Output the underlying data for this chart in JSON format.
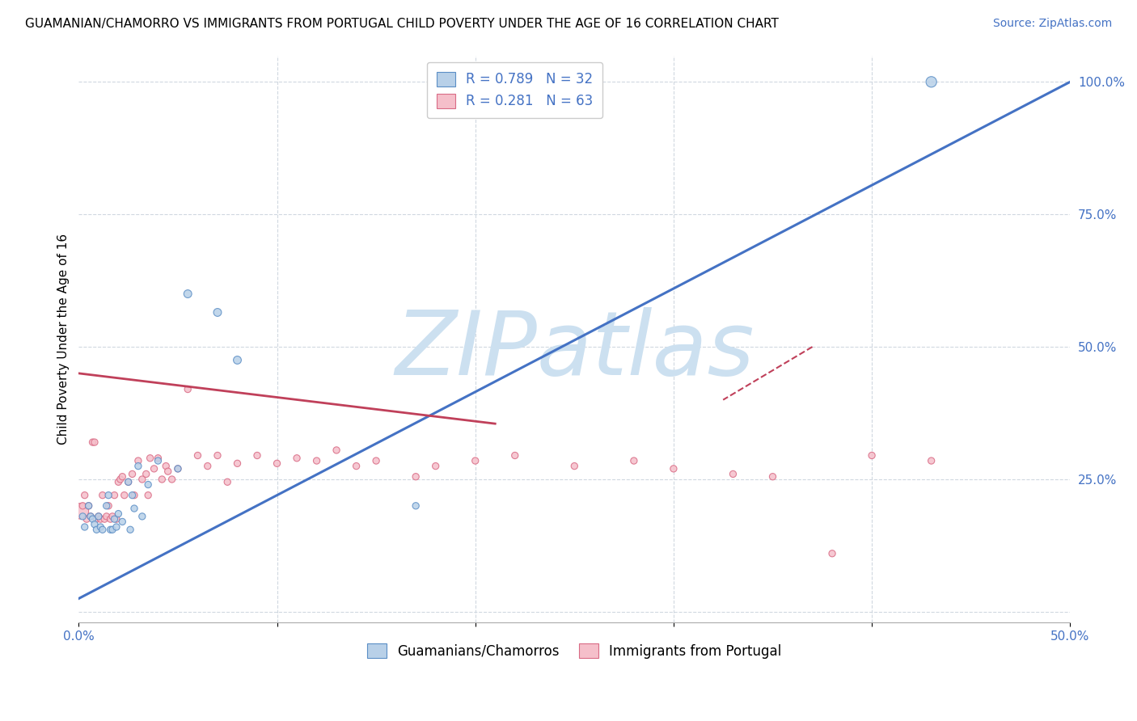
{
  "title": "GUAMANIAN/CHAMORRO VS IMMIGRANTS FROM PORTUGAL CHILD POVERTY UNDER THE AGE OF 16 CORRELATION CHART",
  "source": "Source: ZipAtlas.com",
  "ylabel": "Child Poverty Under the Age of 16",
  "xlim": [
    0.0,
    0.5
  ],
  "ylim_display": [
    0.0,
    1.05
  ],
  "xticks": [
    0.0,
    0.1,
    0.2,
    0.3,
    0.4,
    0.5
  ],
  "xticklabels": [
    "0.0%",
    "",
    "",
    "",
    "",
    "50.0%"
  ],
  "yticks_right": [
    0.0,
    0.25,
    0.5,
    0.75,
    1.0
  ],
  "yticklabels_right": [
    "",
    "25.0%",
    "50.0%",
    "75.0%",
    "100.0%"
  ],
  "blue_fill_color": "#b8d0e8",
  "blue_edge_color": "#5b8ec5",
  "pink_fill_color": "#f5bfca",
  "pink_edge_color": "#d96b85",
  "blue_line_color": "#4472c4",
  "pink_line_color": "#c0405a",
  "watermark": "ZIPatlas",
  "watermark_color": "#cce0f0",
  "legend_R_blue": "R = 0.789",
  "legend_N_blue": "N = 32",
  "legend_R_pink": "R = 0.281",
  "legend_N_pink": "N = 63",
  "legend_label_blue": "Guamanians/Chamorros",
  "legend_label_pink": "Immigrants from Portugal",
  "blue_scatter_x": [
    0.002,
    0.003,
    0.005,
    0.006,
    0.007,
    0.008,
    0.009,
    0.01,
    0.011,
    0.012,
    0.014,
    0.015,
    0.016,
    0.017,
    0.018,
    0.019,
    0.02,
    0.022,
    0.025,
    0.026,
    0.027,
    0.028,
    0.03,
    0.032,
    0.035,
    0.04,
    0.05,
    0.055,
    0.07,
    0.08,
    0.17,
    0.43
  ],
  "blue_scatter_y": [
    0.18,
    0.16,
    0.2,
    0.18,
    0.175,
    0.165,
    0.155,
    0.18,
    0.16,
    0.155,
    0.2,
    0.22,
    0.155,
    0.155,
    0.175,
    0.16,
    0.185,
    0.17,
    0.245,
    0.155,
    0.22,
    0.195,
    0.275,
    0.18,
    0.24,
    0.285,
    0.27,
    0.6,
    0.565,
    0.475,
    0.2,
    1.0
  ],
  "blue_scatter_size": [
    35,
    35,
    35,
    35,
    35,
    35,
    35,
    35,
    35,
    35,
    35,
    35,
    35,
    35,
    35,
    35,
    35,
    35,
    35,
    35,
    35,
    35,
    35,
    35,
    35,
    35,
    35,
    50,
    50,
    50,
    35,
    90
  ],
  "pink_scatter_x": [
    0.001,
    0.002,
    0.003,
    0.004,
    0.005,
    0.006,
    0.007,
    0.008,
    0.009,
    0.01,
    0.011,
    0.012,
    0.013,
    0.014,
    0.015,
    0.016,
    0.017,
    0.018,
    0.019,
    0.02,
    0.021,
    0.022,
    0.023,
    0.025,
    0.027,
    0.028,
    0.03,
    0.032,
    0.034,
    0.035,
    0.036,
    0.038,
    0.04,
    0.042,
    0.044,
    0.045,
    0.047,
    0.05,
    0.055,
    0.06,
    0.065,
    0.07,
    0.075,
    0.08,
    0.09,
    0.1,
    0.11,
    0.12,
    0.13,
    0.14,
    0.15,
    0.17,
    0.18,
    0.2,
    0.22,
    0.25,
    0.28,
    0.3,
    0.33,
    0.35,
    0.38,
    0.4,
    0.43
  ],
  "pink_scatter_y": [
    0.19,
    0.2,
    0.22,
    0.175,
    0.2,
    0.18,
    0.32,
    0.32,
    0.175,
    0.18,
    0.175,
    0.22,
    0.175,
    0.18,
    0.2,
    0.175,
    0.18,
    0.22,
    0.175,
    0.245,
    0.25,
    0.255,
    0.22,
    0.245,
    0.26,
    0.22,
    0.285,
    0.25,
    0.26,
    0.22,
    0.29,
    0.27,
    0.29,
    0.25,
    0.275,
    0.265,
    0.25,
    0.27,
    0.42,
    0.295,
    0.275,
    0.295,
    0.245,
    0.28,
    0.295,
    0.28,
    0.29,
    0.285,
    0.305,
    0.275,
    0.285,
    0.255,
    0.275,
    0.285,
    0.295,
    0.275,
    0.285,
    0.27,
    0.26,
    0.255,
    0.11,
    0.295,
    0.285
  ],
  "pink_scatter_size": [
    200,
    35,
    35,
    35,
    35,
    35,
    35,
    35,
    35,
    35,
    35,
    35,
    35,
    35,
    35,
    35,
    35,
    35,
    35,
    35,
    35,
    35,
    35,
    35,
    35,
    35,
    35,
    35,
    35,
    35,
    35,
    35,
    35,
    35,
    35,
    35,
    35,
    35,
    35,
    35,
    35,
    35,
    35,
    35,
    35,
    35,
    35,
    35,
    35,
    35,
    35,
    35,
    35,
    35,
    35,
    35,
    35,
    35,
    35,
    35,
    35,
    35,
    35
  ],
  "blue_trendline": [
    [
      0.0,
      0.5
    ],
    [
      0.025,
      1.0
    ]
  ],
  "pink_trendline_solid": [
    [
      0.0,
      0.21
    ],
    [
      0.45,
      0.355
    ]
  ],
  "pink_trendline_dashed": [
    [
      0.37,
      0.325
    ],
    [
      0.5,
      0.4
    ]
  ],
  "title_fontsize": 11,
  "source_fontsize": 10,
  "axis_label_fontsize": 11,
  "tick_fontsize": 11,
  "legend_fontsize": 12,
  "background_color": "#ffffff",
  "grid_color": "#d0d8e0"
}
